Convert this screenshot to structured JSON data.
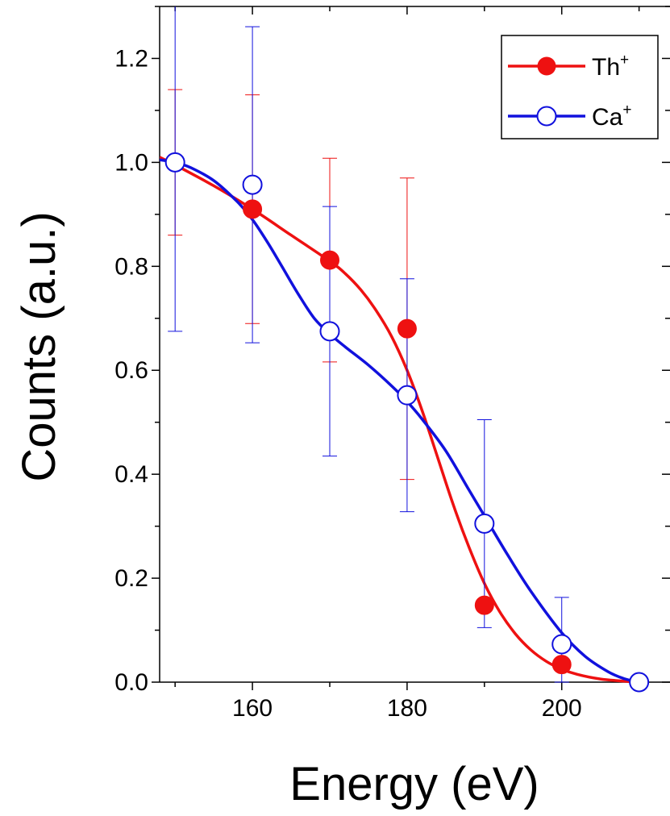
{
  "chart_data": {
    "type": "scatter",
    "xlabel": "Energy (eV)",
    "ylabel": "Counts (a.u.)",
    "xlim": [
      148,
      214
    ],
    "ylim": [
      0,
      1.3
    ],
    "xticks": [
      160,
      180,
      200
    ],
    "xtick_labels": [
      "160",
      "180",
      "200"
    ],
    "yticks": [
      0.0,
      0.2,
      0.4,
      0.6,
      0.8,
      1.0,
      1.2
    ],
    "ytick_labels": [
      "0.0",
      "0.2",
      "0.4",
      "0.6",
      "0.8",
      "1.0",
      "1.2"
    ],
    "grid": false,
    "legend_position": "top-right",
    "series": [
      {
        "name": "Th",
        "name_superscript": "+",
        "color": "#ee1111",
        "marker": "filled-circle",
        "x": [
          150,
          160,
          170,
          180,
          190,
          200,
          210
        ],
        "y": [
          1.0,
          0.91,
          0.812,
          0.68,
          0.148,
          0.034,
          0.0
        ],
        "err_low": [
          0.14,
          0.22,
          0.196,
          0.29,
          null,
          null,
          null
        ],
        "err_high": [
          0.14,
          0.22,
          0.196,
          0.29,
          null,
          null,
          null
        ],
        "fit_x": [
          148,
          150,
          155,
          160,
          165,
          170,
          172,
          174,
          176,
          178,
          180,
          182,
          184,
          186,
          188,
          190,
          192,
          194,
          196,
          198,
          200,
          202,
          205,
          208,
          210
        ],
        "fit_y": [
          1.01,
          0.995,
          0.955,
          0.91,
          0.86,
          0.81,
          0.786,
          0.755,
          0.715,
          0.665,
          0.6,
          0.52,
          0.43,
          0.34,
          0.26,
          0.19,
          0.135,
          0.093,
          0.062,
          0.04,
          0.025,
          0.015,
          0.006,
          0.002,
          0.0
        ]
      },
      {
        "name": "Ca",
        "name_superscript": "+",
        "color": "#1111dd",
        "marker": "open-circle",
        "x": [
          150,
          160,
          170,
          180,
          190,
          200,
          210
        ],
        "y": [
          1.0,
          0.957,
          0.675,
          0.552,
          0.305,
          0.073,
          0.0
        ],
        "err_low": [
          0.325,
          0.304,
          0.24,
          0.224,
          0.2,
          0.073,
          null
        ],
        "err_high": [
          0.325,
          0.304,
          0.24,
          0.224,
          0.2,
          0.09,
          null
        ],
        "fit_x": [
          148,
          150,
          152,
          155,
          158,
          160,
          162,
          164,
          166,
          168,
          170,
          172,
          175,
          178,
          180,
          182,
          185,
          188,
          190,
          193,
          196,
          200,
          203,
          206,
          208,
          210
        ],
        "fit_y": [
          1.005,
          1.0,
          0.99,
          0.965,
          0.925,
          0.89,
          0.845,
          0.795,
          0.745,
          0.7,
          0.67,
          0.645,
          0.61,
          0.57,
          0.54,
          0.505,
          0.445,
          0.37,
          0.32,
          0.245,
          0.175,
          0.095,
          0.05,
          0.02,
          0.007,
          0.0
        ]
      }
    ]
  }
}
